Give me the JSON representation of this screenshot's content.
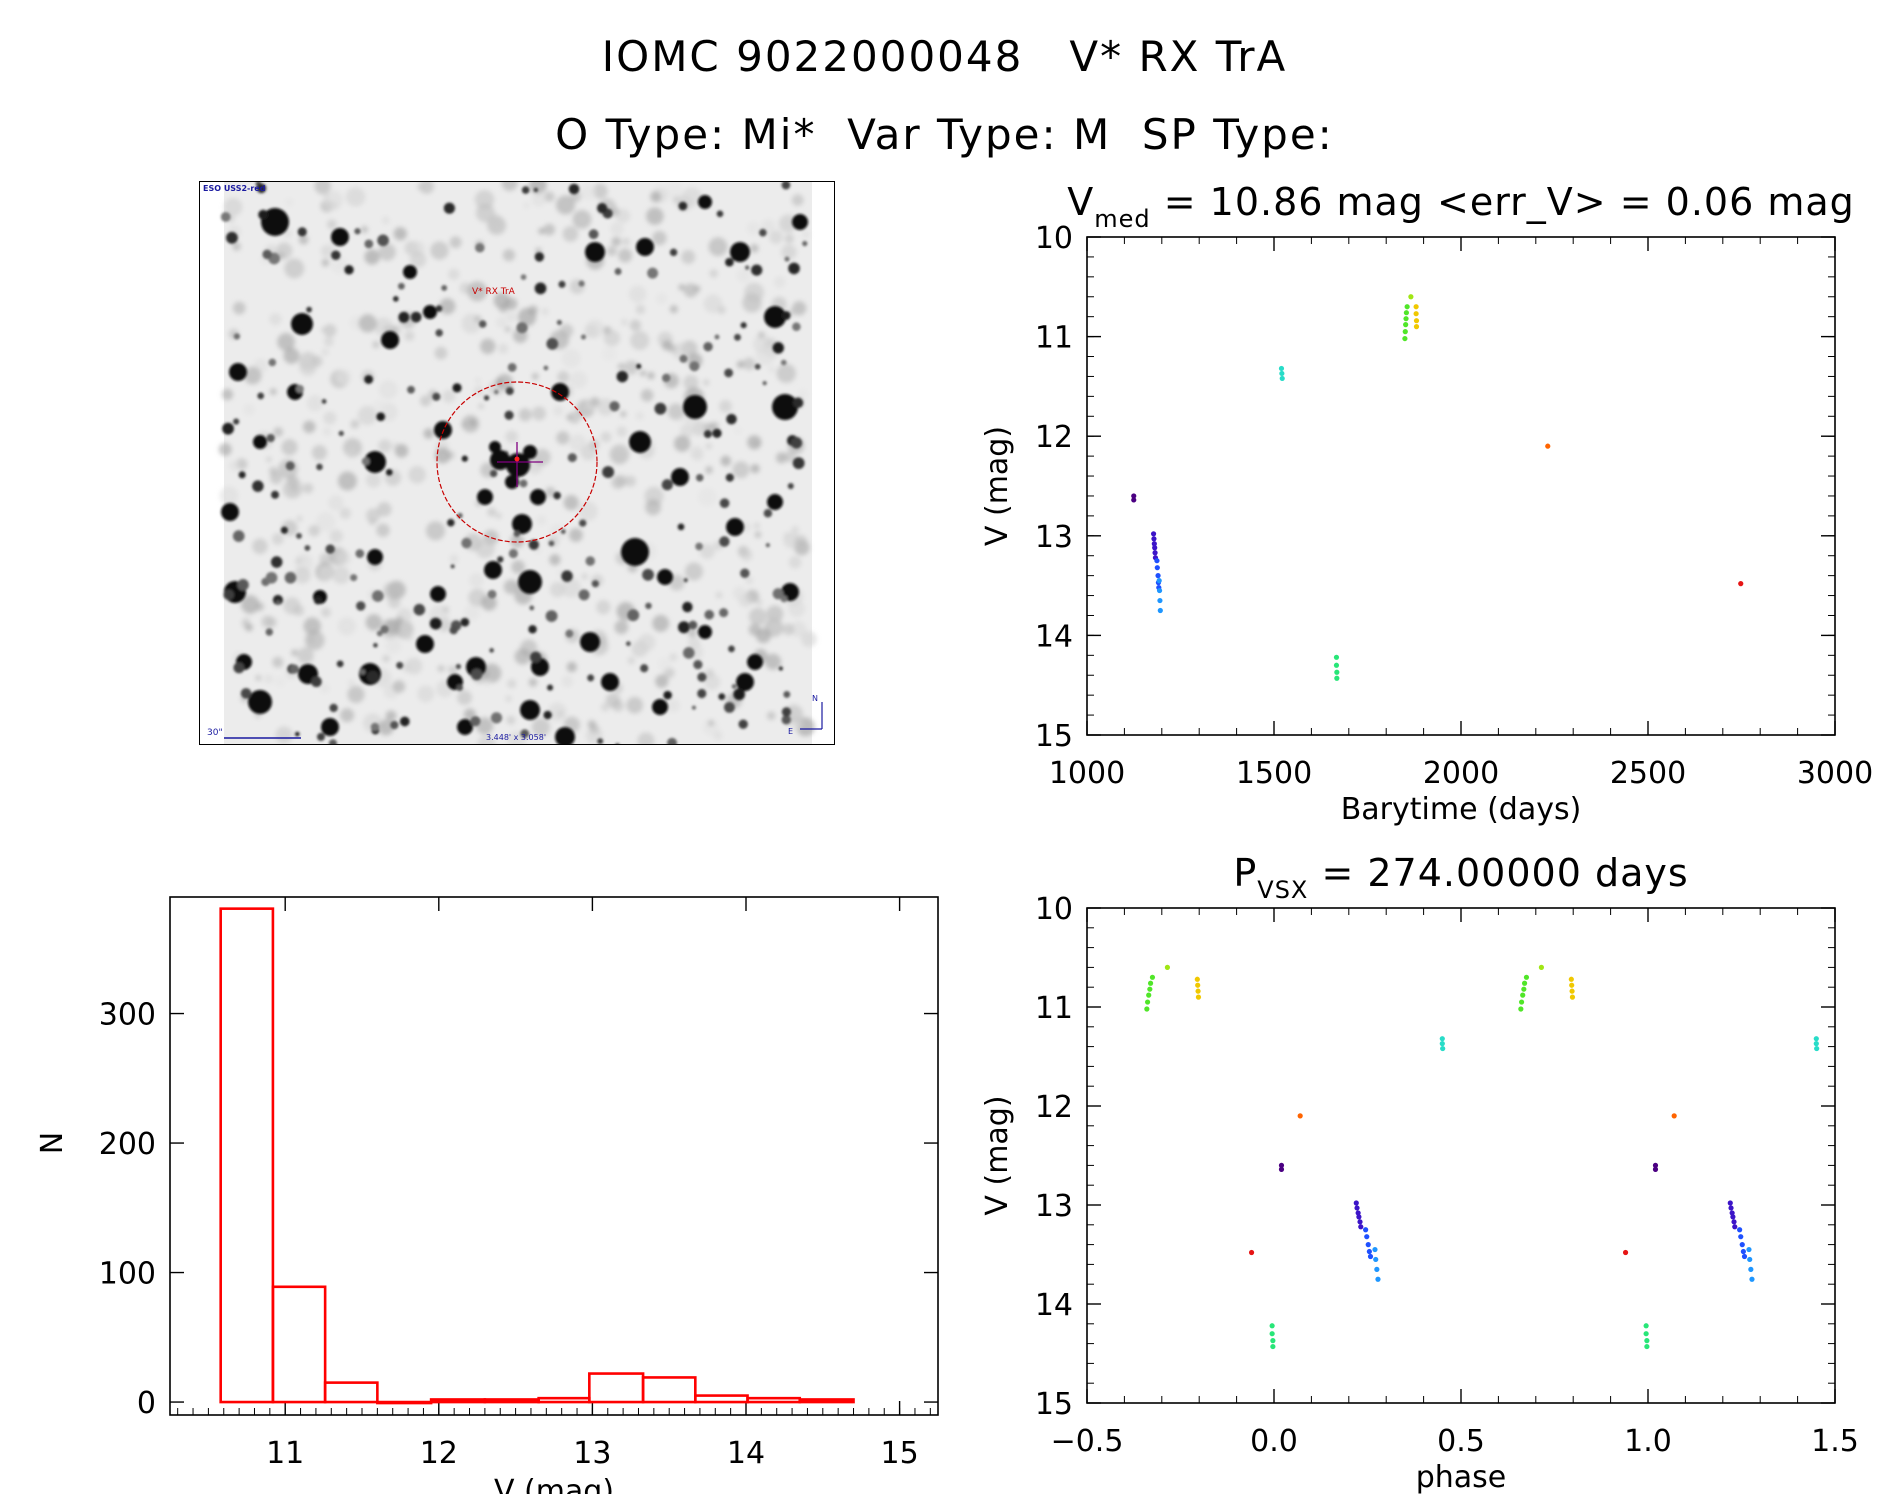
{
  "header": {
    "title": "IOMC 9022000048   V* RX TrA",
    "subtitle": "O Type: Mi*  Var Type: M  SP Type:"
  },
  "finder_chart": {
    "survey_label": "ESO USS2-red",
    "target_label": "V* RX TrA",
    "scale_label": "30\"",
    "fov_label": "3.448' x 3.058'",
    "compass_north": "N",
    "compass_east": "E",
    "circle_color": "#c80000",
    "cross_color": "#800080"
  },
  "colors": {
    "hist": "#ff0000",
    "axes": "#000000",
    "purple": "#4b0082",
    "indigo": "#3c14c8",
    "blue": "#1e50ff",
    "lightblue": "#1e96ff",
    "cyan": "#28dcc8",
    "green_spring": "#28e678",
    "green": "#50e628",
    "lime": "#a0e614",
    "yellow": "#f0c800",
    "orange": "#ff6400",
    "red": "#e61414"
  },
  "chart_data": [
    {
      "id": "lightcurve",
      "type": "scatter",
      "title_main": "V",
      "title_sub": "med",
      "title_rest": "= 10.86 mag <err_V> = 0.06 mag",
      "xlabel": "Barytime (days)",
      "ylabel": "V (mag)",
      "xlim": [
        1000,
        3000
      ],
      "ylim": [
        15,
        10
      ],
      "xticks": [
        1000,
        1500,
        2000,
        2500,
        3000
      ],
      "yticks": [
        10,
        11,
        12,
        13,
        14,
        15
      ],
      "series": [
        {
          "name": "purple",
          "color": "purple",
          "points": [
            [
              1125,
              12.6
            ],
            [
              1125,
              12.64
            ]
          ]
        },
        {
          "name": "indigo",
          "color": "indigo",
          "points": [
            [
              1178,
              12.98
            ],
            [
              1179,
              13.03
            ],
            [
              1180,
              13.08
            ],
            [
              1181,
              13.12
            ],
            [
              1182,
              13.17
            ],
            [
              1183,
              13.22
            ]
          ]
        },
        {
          "name": "blue",
          "color": "blue",
          "points": [
            [
              1187,
              13.25
            ],
            [
              1188,
              13.32
            ],
            [
              1190,
              13.4
            ],
            [
              1191,
              13.47
            ],
            [
              1192,
              13.52
            ]
          ]
        },
        {
          "name": "lightblue",
          "color": "lightblue",
          "points": [
            [
              1193,
              13.45
            ],
            [
              1194,
              13.55
            ],
            [
              1195,
              13.65
            ],
            [
              1196,
              13.75
            ]
          ]
        },
        {
          "name": "cyan",
          "color": "cyan",
          "points": [
            [
              1520,
              11.32
            ],
            [
              1521,
              11.37
            ],
            [
              1522,
              11.42
            ]
          ]
        },
        {
          "name": "green_spring",
          "color": "green_spring",
          "points": [
            [
              1667,
              14.22
            ],
            [
              1667,
              14.3
            ],
            [
              1668,
              14.37
            ],
            [
              1668,
              14.43
            ]
          ]
        },
        {
          "name": "green",
          "color": "green",
          "points": [
            [
              1850,
              11.02
            ],
            [
              1851,
              10.95
            ],
            [
              1852,
              10.88
            ],
            [
              1853,
              10.82
            ],
            [
              1854,
              10.76
            ],
            [
              1856,
              10.7
            ]
          ]
        },
        {
          "name": "lime",
          "color": "lime",
          "points": [
            [
              1866,
              10.6
            ]
          ]
        },
        {
          "name": "yellow",
          "color": "yellow",
          "points": [
            [
              1880,
              10.7
            ],
            [
              1880,
              10.77
            ],
            [
              1881,
              10.84
            ],
            [
              1881,
              10.9
            ]
          ]
        },
        {
          "name": "orange",
          "color": "orange",
          "points": [
            [
              2232,
              12.1
            ]
          ]
        },
        {
          "name": "red",
          "color": "red",
          "points": [
            [
              2748,
              13.48
            ]
          ]
        }
      ]
    },
    {
      "id": "phased",
      "type": "scatter",
      "title_main": "P",
      "title_sub": "VSX",
      "title_rest": "= 274.00000 days",
      "xlabel": "phase",
      "ylabel": "V (mag)",
      "xlim": [
        -0.5,
        1.5
      ],
      "ylim": [
        15,
        10
      ],
      "xticks": [
        -0.5,
        0.0,
        0.5,
        1.0,
        1.5
      ],
      "xtick_labels": [
        "−0.5",
        "0.0",
        "0.5",
        "1.0",
        "1.5"
      ],
      "yticks": [
        10,
        11,
        12,
        13,
        14,
        15
      ],
      "series": [
        {
          "name": "red",
          "color": "red",
          "points": [
            [
              -0.06,
              13.48
            ],
            [
              0.94,
              13.48
            ]
          ]
        },
        {
          "name": "green_spring",
          "color": "green_spring",
          "points": [
            [
              -0.005,
              14.22
            ],
            [
              -0.005,
              14.3
            ],
            [
              -0.003,
              14.37
            ],
            [
              -0.003,
              14.43
            ],
            [
              0.995,
              14.22
            ],
            [
              0.995,
              14.3
            ],
            [
              0.997,
              14.37
            ],
            [
              0.997,
              14.43
            ]
          ]
        },
        {
          "name": "purple",
          "color": "purple",
          "points": [
            [
              0.02,
              12.6
            ],
            [
              0.02,
              12.64
            ],
            [
              1.02,
              12.6
            ],
            [
              1.02,
              12.64
            ]
          ]
        },
        {
          "name": "orange",
          "color": "orange",
          "points": [
            [
              0.07,
              12.1
            ],
            [
              1.07,
              12.1
            ]
          ]
        },
        {
          "name": "indigo",
          "color": "indigo",
          "points": [
            [
              0.22,
              12.98
            ],
            [
              0.222,
              13.03
            ],
            [
              0.225,
              13.08
            ],
            [
              0.227,
              13.12
            ],
            [
              0.23,
              13.17
            ],
            [
              0.232,
              13.22
            ],
            [
              1.22,
              12.98
            ],
            [
              1.222,
              13.03
            ],
            [
              1.225,
              13.08
            ],
            [
              1.227,
              13.12
            ],
            [
              1.23,
              13.17
            ],
            [
              1.232,
              13.22
            ]
          ]
        },
        {
          "name": "blue",
          "color": "blue",
          "points": [
            [
              0.245,
              13.25
            ],
            [
              0.248,
              13.32
            ],
            [
              0.252,
              13.4
            ],
            [
              0.255,
              13.47
            ],
            [
              0.258,
              13.52
            ],
            [
              1.245,
              13.25
            ],
            [
              1.248,
              13.32
            ],
            [
              1.252,
              13.4
            ],
            [
              1.255,
              13.47
            ],
            [
              1.258,
              13.52
            ]
          ]
        },
        {
          "name": "lightblue",
          "color": "lightblue",
          "points": [
            [
              0.27,
              13.45
            ],
            [
              0.272,
              13.55
            ],
            [
              0.275,
              13.65
            ],
            [
              0.278,
              13.75
            ],
            [
              1.27,
              13.45
            ],
            [
              1.272,
              13.55
            ],
            [
              1.275,
              13.65
            ],
            [
              1.278,
              13.75
            ]
          ]
        },
        {
          "name": "cyan",
          "color": "cyan",
          "points": [
            [
              0.45,
              11.32
            ],
            [
              0.45,
              11.37
            ],
            [
              0.451,
              11.42
            ],
            [
              1.45,
              11.32
            ],
            [
              1.45,
              11.37
            ],
            [
              1.451,
              11.42
            ]
          ]
        },
        {
          "name": "green",
          "color": "green",
          "points": [
            [
              -0.34,
              11.02
            ],
            [
              -0.338,
              10.95
            ],
            [
              -0.335,
              10.88
            ],
            [
              -0.332,
              10.82
            ],
            [
              -0.33,
              10.76
            ],
            [
              -0.325,
              10.7
            ],
            [
              0.66,
              11.02
            ],
            [
              0.662,
              10.95
            ],
            [
              0.665,
              10.88
            ],
            [
              0.668,
              10.82
            ],
            [
              0.67,
              10.76
            ],
            [
              0.675,
              10.7
            ]
          ]
        },
        {
          "name": "lime",
          "color": "lime",
          "points": [
            [
              -0.285,
              10.6
            ],
            [
              0.715,
              10.6
            ]
          ]
        },
        {
          "name": "yellow",
          "color": "yellow",
          "points": [
            [
              -0.205,
              10.72
            ],
            [
              -0.204,
              10.78
            ],
            [
              -0.203,
              10.84
            ],
            [
              -0.202,
              10.9
            ],
            [
              0.795,
              10.72
            ],
            [
              0.796,
              10.78
            ],
            [
              0.797,
              10.84
            ],
            [
              0.798,
              10.9
            ]
          ]
        }
      ]
    },
    {
      "id": "histogram",
      "type": "bar",
      "xlabel": "V (mag)",
      "ylabel": "N",
      "xlim": [
        10.25,
        15.25
      ],
      "ylim": [
        -10,
        390
      ],
      "xticks": [
        11,
        12,
        13,
        14,
        15
      ],
      "yticks": [
        0,
        100,
        200,
        300
      ],
      "bins": [
        {
          "x0": 10.58,
          "x1": 10.92,
          "count": 381
        },
        {
          "x0": 10.92,
          "x1": 11.26,
          "count": 89
        },
        {
          "x0": 11.26,
          "x1": 11.6,
          "count": 15
        },
        {
          "x0": 11.6,
          "x1": 11.95,
          "count": 0
        },
        {
          "x0": 11.95,
          "x1": 12.3,
          "count": 2
        },
        {
          "x0": 12.3,
          "x1": 12.65,
          "count": 2
        },
        {
          "x0": 12.65,
          "x1": 12.98,
          "count": 3
        },
        {
          "x0": 12.98,
          "x1": 13.33,
          "count": 22
        },
        {
          "x0": 13.33,
          "x1": 13.67,
          "count": 19
        },
        {
          "x0": 13.67,
          "x1": 14.01,
          "count": 5
        },
        {
          "x0": 14.01,
          "x1": 14.35,
          "count": 3
        },
        {
          "x0": 14.35,
          "x1": 14.7,
          "count": 2
        }
      ]
    }
  ]
}
